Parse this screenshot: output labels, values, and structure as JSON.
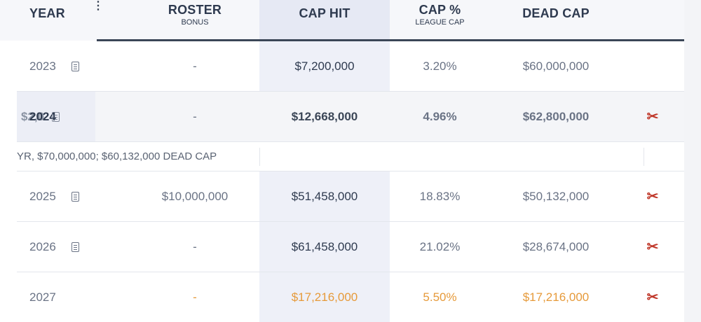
{
  "header": {
    "year": "YEAR",
    "roster_main": "ROSTER",
    "roster_sub": "BONUS",
    "cap_hit": "CAP HIT",
    "cap_pct_main": "CAP %",
    "cap_pct_sub": "LEAGUE CAP",
    "dead_cap": "DEAD CAP",
    "menu_glyph": "⋮"
  },
  "rows": [
    {
      "year": "2023",
      "roster_bonus": "-",
      "cap_hit": "$7,200,000",
      "cap_pct": "3.20%",
      "dead_cap": "$60,000,000",
      "cut_icon": ""
    },
    {
      "year": "2024",
      "roster_bonus": "-",
      "cap_hit": "$12,668,000",
      "cap_pct": "4.96%",
      "dead_cap": "$62,800,000",
      "cut_icon": "✂",
      "ghost_text": "$2,0"
    },
    {
      "year": "2025",
      "roster_bonus": "$10,000,000",
      "cap_hit": "$51,458,000",
      "cap_pct": "18.83%",
      "dead_cap": "$50,132,000",
      "cut_icon": "✂"
    },
    {
      "year": "2026",
      "roster_bonus": "-",
      "cap_hit": "$61,458,000",
      "cap_pct": "21.02%",
      "dead_cap": "$28,674,000",
      "cut_icon": "✂"
    },
    {
      "year": "2027",
      "roster_bonus": "-",
      "cap_hit": "$17,216,000",
      "cap_pct": "5.50%",
      "dead_cap": "$17,216,000",
      "cut_icon": "✂"
    }
  ],
  "note_row": "YR, $70,000,000; $60,132,000 DEAD CAP",
  "colors": {
    "accent_red": "#c0392b",
    "projected_orange": "#e69a3a",
    "header_text": "#2e3a4f"
  },
  "icons": {
    "doc": "document-icon",
    "cut": "scissors-icon",
    "menu": "kebab-menu-icon"
  }
}
